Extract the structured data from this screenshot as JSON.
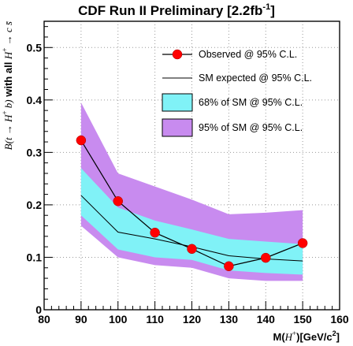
{
  "chart_data": {
    "type": "line",
    "title": "CDF Run II Preliminary [2.2fb",
    "title_superscript": "-1",
    "title_tail": "]",
    "xlabel_prefix": "M(",
    "xlabel_math": "H",
    "xlabel_math_sup": "+",
    "xlabel_suffix": ")[GeV/c",
    "xlabel_suffix_sup": "2",
    "xlabel_close": "]",
    "ylabel_math_left": "B(t → H",
    "ylabel_math_left_sup": "+",
    "ylabel_math_left_tail": " b)",
    "ylabel_bold": " with all ",
    "ylabel_math_right": "H",
    "ylabel_math_right_sup": "+",
    "ylabel_math_right_tail": " → c s̄",
    "xlim": [
      80,
      160
    ],
    "ylim": [
      0,
      0.55
    ],
    "x_ticks": [
      80,
      90,
      100,
      110,
      120,
      130,
      140,
      150,
      160
    ],
    "y_ticks": [
      0,
      0.1,
      0.2,
      0.3,
      0.4,
      0.5
    ],
    "y_tick_labels": [
      "0",
      "0.1",
      "0.2",
      "0.3",
      "0.4",
      "0.5"
    ],
    "grid": true,
    "legend_position": "top-right",
    "x": [
      90,
      100,
      110,
      120,
      130,
      140,
      150
    ],
    "series": [
      {
        "name": "Observed @ 95% C.L.",
        "kind": "line-markers",
        "values": [
          0.323,
          0.207,
          0.147,
          0.116,
          0.083,
          0.099,
          0.127
        ]
      },
      {
        "name": "SM expected @ 95% C.L.",
        "kind": "line",
        "values": [
          0.218,
          0.148,
          0.135,
          0.12,
          0.103,
          0.097,
          0.093
        ]
      },
      {
        "name": "68% of SM @ 95% C.L.",
        "kind": "band",
        "lower": [
          0.18,
          0.115,
          0.1,
          0.095,
          0.075,
          0.07,
          0.067
        ],
        "upper": [
          0.27,
          0.195,
          0.17,
          0.153,
          0.135,
          0.13,
          0.125
        ]
      },
      {
        "name": "95% of SM @ 95% C.L.",
        "kind": "band",
        "lower": [
          0.16,
          0.1,
          0.085,
          0.08,
          0.06,
          0.055,
          0.055
        ],
        "upper": [
          0.395,
          0.26,
          0.235,
          0.21,
          0.182,
          0.185,
          0.19
        ]
      }
    ],
    "colors": {
      "observed": "#ff0000",
      "expected": "#000000",
      "band68": "#80f2f7",
      "band95": "#c88bef",
      "grid": "#999999"
    }
  }
}
